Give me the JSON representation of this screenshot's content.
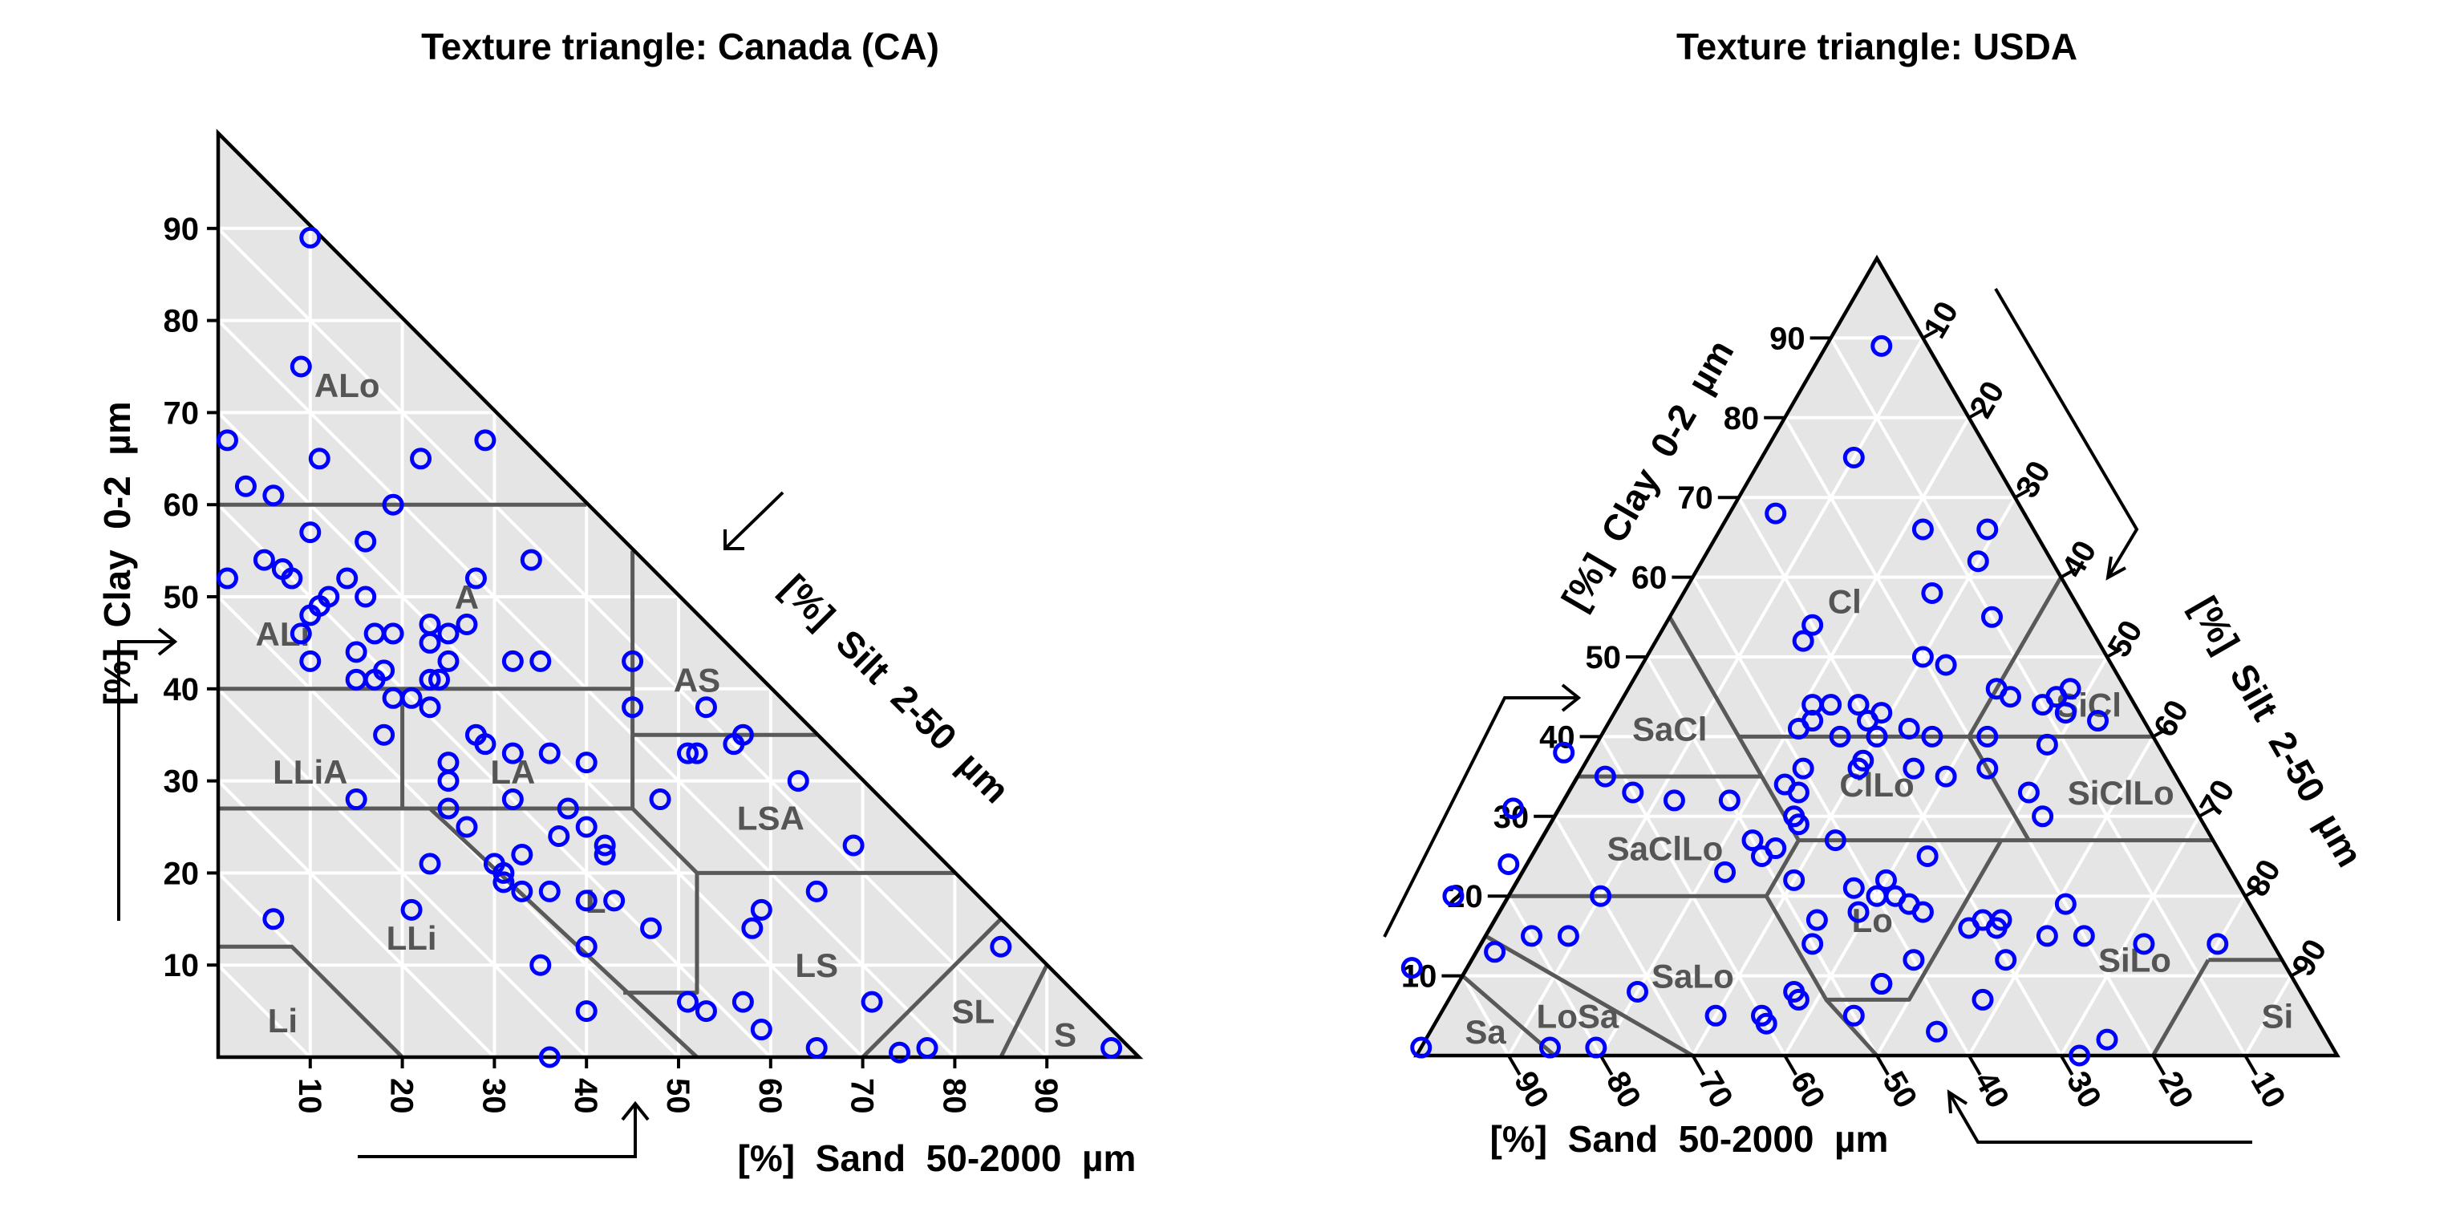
{
  "chart_data": [
    {
      "type": "scatter",
      "subtype": "texture-triangle-right-angled",
      "title": "Texture triangle: Canada (CA)",
      "axes": {
        "clay": {
          "label": "[%]  Clay  0-2  µm",
          "ticks": [
            10,
            20,
            30,
            40,
            50,
            60,
            70,
            80,
            90
          ]
        },
        "sand": {
          "label": "[%]  Sand  50-2000  µm",
          "ticks": [
            10,
            20,
            30,
            40,
            50,
            60,
            70,
            80,
            90
          ]
        },
        "silt": {
          "label": "[%]  Silt  2-50  µm"
        }
      },
      "classes": [
        "ALo",
        "ALi",
        "A",
        "AS",
        "LLiA",
        "LA",
        "LSA",
        "LLi",
        "L",
        "LS",
        "SL",
        "S",
        "Li"
      ],
      "point_style": {
        "marker": "circle",
        "color": "#0000ff"
      },
      "points": [
        {
          "sand": 10,
          "clay": 89
        },
        {
          "sand": 9,
          "clay": 75
        },
        {
          "sand": 11,
          "clay": 65
        },
        {
          "sand": 22,
          "clay": 65
        },
        {
          "sand": 29,
          "clay": 67
        },
        {
          "sand": 1,
          "clay": 67
        },
        {
          "sand": 3,
          "clay": 62
        },
        {
          "sand": 6,
          "clay": 61
        },
        {
          "sand": 19,
          "clay": 60
        },
        {
          "sand": 10,
          "clay": 57
        },
        {
          "sand": 16,
          "clay": 56
        },
        {
          "sand": 34,
          "clay": 54
        },
        {
          "sand": 5,
          "clay": 54
        },
        {
          "sand": 7,
          "clay": 53
        },
        {
          "sand": 8,
          "clay": 52
        },
        {
          "sand": 1,
          "clay": 52
        },
        {
          "sand": 14,
          "clay": 52
        },
        {
          "sand": 28,
          "clay": 52
        },
        {
          "sand": 12,
          "clay": 50
        },
        {
          "sand": 16,
          "clay": 50
        },
        {
          "sand": 11,
          "clay": 49
        },
        {
          "sand": 10,
          "clay": 48
        },
        {
          "sand": 23,
          "clay": 47
        },
        {
          "sand": 27,
          "clay": 47
        },
        {
          "sand": 17,
          "clay": 46
        },
        {
          "sand": 19,
          "clay": 46
        },
        {
          "sand": 9,
          "clay": 46
        },
        {
          "sand": 25,
          "clay": 46
        },
        {
          "sand": 23,
          "clay": 45
        },
        {
          "sand": 15,
          "clay": 44
        },
        {
          "sand": 10,
          "clay": 43
        },
        {
          "sand": 18,
          "clay": 42
        },
        {
          "sand": 25,
          "clay": 43
        },
        {
          "sand": 32,
          "clay": 43
        },
        {
          "sand": 35,
          "clay": 43
        },
        {
          "sand": 45,
          "clay": 43
        },
        {
          "sand": 15,
          "clay": 41
        },
        {
          "sand": 17,
          "clay": 41
        },
        {
          "sand": 23,
          "clay": 41
        },
        {
          "sand": 24,
          "clay": 41
        },
        {
          "sand": 19,
          "clay": 39
        },
        {
          "sand": 21,
          "clay": 39
        },
        {
          "sand": 23,
          "clay": 38
        },
        {
          "sand": 45,
          "clay": 38
        },
        {
          "sand": 53,
          "clay": 38
        },
        {
          "sand": 18,
          "clay": 35
        },
        {
          "sand": 28,
          "clay": 35
        },
        {
          "sand": 29,
          "clay": 34
        },
        {
          "sand": 32,
          "clay": 33
        },
        {
          "sand": 36,
          "clay": 33
        },
        {
          "sand": 51,
          "clay": 33
        },
        {
          "sand": 52,
          "clay": 33
        },
        {
          "sand": 56,
          "clay": 34
        },
        {
          "sand": 57,
          "clay": 35
        },
        {
          "sand": 25,
          "clay": 32
        },
        {
          "sand": 40,
          "clay": 32
        },
        {
          "sand": 25,
          "clay": 30
        },
        {
          "sand": 63,
          "clay": 30
        },
        {
          "sand": 15,
          "clay": 28
        },
        {
          "sand": 32,
          "clay": 28
        },
        {
          "sand": 38,
          "clay": 27
        },
        {
          "sand": 48,
          "clay": 28
        },
        {
          "sand": 25,
          "clay": 27
        },
        {
          "sand": 27,
          "clay": 25
        },
        {
          "sand": 40,
          "clay": 25
        },
        {
          "sand": 37,
          "clay": 24
        },
        {
          "sand": 69,
          "clay": 23
        },
        {
          "sand": 33,
          "clay": 22
        },
        {
          "sand": 42,
          "clay": 22
        },
        {
          "sand": 42,
          "clay": 23
        },
        {
          "sand": 23,
          "clay": 21
        },
        {
          "sand": 30,
          "clay": 21
        },
        {
          "sand": 31,
          "clay": 20
        },
        {
          "sand": 31,
          "clay": 19
        },
        {
          "sand": 33,
          "clay": 18
        },
        {
          "sand": 36,
          "clay": 18
        },
        {
          "sand": 65,
          "clay": 18
        },
        {
          "sand": 21,
          "clay": 16
        },
        {
          "sand": 40,
          "clay": 17
        },
        {
          "sand": 43,
          "clay": 17
        },
        {
          "sand": 59,
          "clay": 16
        },
        {
          "sand": 6,
          "clay": 15
        },
        {
          "sand": 58,
          "clay": 14
        },
        {
          "sand": 47,
          "clay": 14
        },
        {
          "sand": 40,
          "clay": 12
        },
        {
          "sand": 85,
          "clay": 12
        },
        {
          "sand": 35,
          "clay": 10
        },
        {
          "sand": 51,
          "clay": 6
        },
        {
          "sand": 53,
          "clay": 5
        },
        {
          "sand": 57,
          "clay": 6
        },
        {
          "sand": 71,
          "clay": 6
        },
        {
          "sand": 40,
          "clay": 5
        },
        {
          "sand": 59,
          "clay": 3
        },
        {
          "sand": 65,
          "clay": 1
        },
        {
          "sand": 74,
          "clay": 0.5
        },
        {
          "sand": 77,
          "clay": 1
        },
        {
          "sand": 97,
          "clay": 1
        },
        {
          "sand": 36,
          "clay": 0
        }
      ]
    },
    {
      "type": "scatter",
      "subtype": "texture-triangle-equilateral",
      "title": "Texture triangle: USDA",
      "axes": {
        "clay": {
          "label": "[%]  Clay  0-2  µm",
          "ticks": [
            10,
            20,
            30,
            40,
            50,
            60,
            70,
            80,
            90
          ]
        },
        "silt": {
          "label": "[%]  Silt  2-50  µm",
          "ticks": [
            10,
            20,
            30,
            40,
            50,
            60,
            70,
            80,
            90
          ]
        },
        "sand": {
          "label": "[%]  Sand  50-2000  µm",
          "ticks": [
            90,
            80,
            70,
            60,
            50,
            40,
            30,
            20,
            10
          ]
        }
      },
      "classes": [
        "Cl",
        "SiCl",
        "SaCl",
        "ClLo",
        "SiClLo",
        "SaClLo",
        "Lo",
        "SiLo",
        "SaLo",
        "Si",
        "LoSa",
        "Sa"
      ],
      "point_style": {
        "marker": "circle",
        "color": "#0000ff"
      },
      "points": [
        {
          "sand": 5,
          "clay": 89
        },
        {
          "sand": 15,
          "clay": 75
        },
        {
          "sand": 27,
          "clay": 68
        },
        {
          "sand": 12,
          "clay": 66
        },
        {
          "sand": 5,
          "clay": 66
        },
        {
          "sand": 8,
          "clay": 62
        },
        {
          "sand": 30,
          "clay": 54
        },
        {
          "sand": 32,
          "clay": 52
        },
        {
          "sand": 35,
          "clay": 44
        },
        {
          "sand": 30,
          "clay": 44
        },
        {
          "sand": 15,
          "clay": 58
        },
        {
          "sand": 10,
          "clay": 55
        },
        {
          "sand": 20,
          "clay": 50
        },
        {
          "sand": 18,
          "clay": 49
        },
        {
          "sand": 14,
          "clay": 46
        },
        {
          "sand": 13,
          "clay": 45
        },
        {
          "sand": 10,
          "clay": 44
        },
        {
          "sand": 8,
          "clay": 45
        },
        {
          "sand": 6,
          "clay": 46
        },
        {
          "sand": 8,
          "clay": 43
        },
        {
          "sand": 5,
          "clay": 42
        },
        {
          "sand": 28,
          "clay": 43
        },
        {
          "sand": 30,
          "clay": 42
        },
        {
          "sand": 33,
          "clay": 44
        },
        {
          "sand": 36,
          "clay": 42
        },
        {
          "sand": 18,
          "clay": 40
        },
        {
          "sand": 24,
          "clay": 40
        },
        {
          "sand": 26,
          "clay": 41
        },
        {
          "sand": 30,
          "clay": 40
        },
        {
          "sand": 34,
          "clay": 40
        },
        {
          "sand": 38,
          "clay": 41
        },
        {
          "sand": 43,
          "clay": 34
        },
        {
          "sand": 40,
          "clay": 36
        },
        {
          "sand": 33,
          "clay": 37
        },
        {
          "sand": 34,
          "clay": 36
        },
        {
          "sand": 20,
          "clay": 36
        },
        {
          "sand": 28,
          "clay": 36
        },
        {
          "sand": 42,
          "clay": 33
        },
        {
          "sand": 17,
          "clay": 30
        },
        {
          "sand": 50,
          "clay": 32
        },
        {
          "sand": 50,
          "clay": 27
        },
        {
          "sand": 12,
          "clay": 39
        },
        {
          "sand": 48,
          "clay": 26
        },
        {
          "sand": 50,
          "clay": 25
        },
        {
          "sand": 25,
          "clay": 35
        },
        {
          "sand": 17,
          "clay": 33
        },
        {
          "sand": 44,
          "clay": 30
        },
        {
          "sand": 44,
          "clay": 29
        },
        {
          "sand": 65,
          "clay": 38
        },
        {
          "sand": 62,
          "clay": 35
        },
        {
          "sand": 74,
          "clay": 31
        },
        {
          "sand": 78,
          "clay": 24
        },
        {
          "sand": 70,
          "clay": 20
        },
        {
          "sand": 42,
          "clay": 21
        },
        {
          "sand": 40,
          "clay": 20
        },
        {
          "sand": 37,
          "clay": 19
        },
        {
          "sand": 36,
          "clay": 18
        },
        {
          "sand": 28,
          "clay": 17
        },
        {
          "sand": 29,
          "clay": 16
        },
        {
          "sand": 30,
          "clay": 17
        },
        {
          "sand": 32,
          "clay": 16
        },
        {
          "sand": 48,
          "clay": 17
        },
        {
          "sand": 43,
          "clay": 18
        },
        {
          "sand": 38,
          "clay": 22
        },
        {
          "sand": 38,
          "clay": 20
        },
        {
          "sand": 55,
          "clay": 23
        },
        {
          "sand": 24,
          "clay": 15
        },
        {
          "sand": 14,
          "clay": 14
        },
        {
          "sand": 32,
          "clay": 25
        },
        {
          "sand": 41,
          "clay": 27
        },
        {
          "sand": 20,
          "clay": 19
        },
        {
          "sand": 48,
          "clay": 22
        },
        {
          "sand": 60,
          "clay": 33
        },
        {
          "sand": 56,
          "clay": 32
        },
        {
          "sand": 40,
          "clay": 12
        },
        {
          "sand": 30,
          "clay": 12
        },
        {
          "sand": 45,
          "clay": 9
        },
        {
          "sand": 55,
          "clay": 8
        },
        {
          "sand": 60,
          "clay": 5
        },
        {
          "sand": 80,
          "clay": 15
        },
        {
          "sand": 86,
          "clay": 20
        },
        {
          "sand": 95,
          "clay": 11
        },
        {
          "sand": 55,
          "clay": 7
        },
        {
          "sand": 65,
          "clay": 5
        },
        {
          "sand": 45,
          "clay": 9
        },
        {
          "sand": 76,
          "clay": 15
        },
        {
          "sand": 85,
          "clay": 13
        },
        {
          "sand": 72,
          "clay": 8
        },
        {
          "sand": 60,
          "clay": 4
        },
        {
          "sand": 85,
          "clay": 1
        },
        {
          "sand": 80,
          "clay": 1
        },
        {
          "sand": 99,
          "clay": 1
        },
        {
          "sand": 50,
          "clay": 5
        },
        {
          "sand": 42,
          "clay": 3
        },
        {
          "sand": 28,
          "clay": 0
        },
        {
          "sand": 24,
          "clay": 2
        },
        {
          "sand": 20,
          "clay": 15
        },
        {
          "sand": 35,
          "clay": 7
        },
        {
          "sand": 50,
          "clay": 14
        },
        {
          "sand": 6,
          "clay": 14
        }
      ]
    }
  ]
}
